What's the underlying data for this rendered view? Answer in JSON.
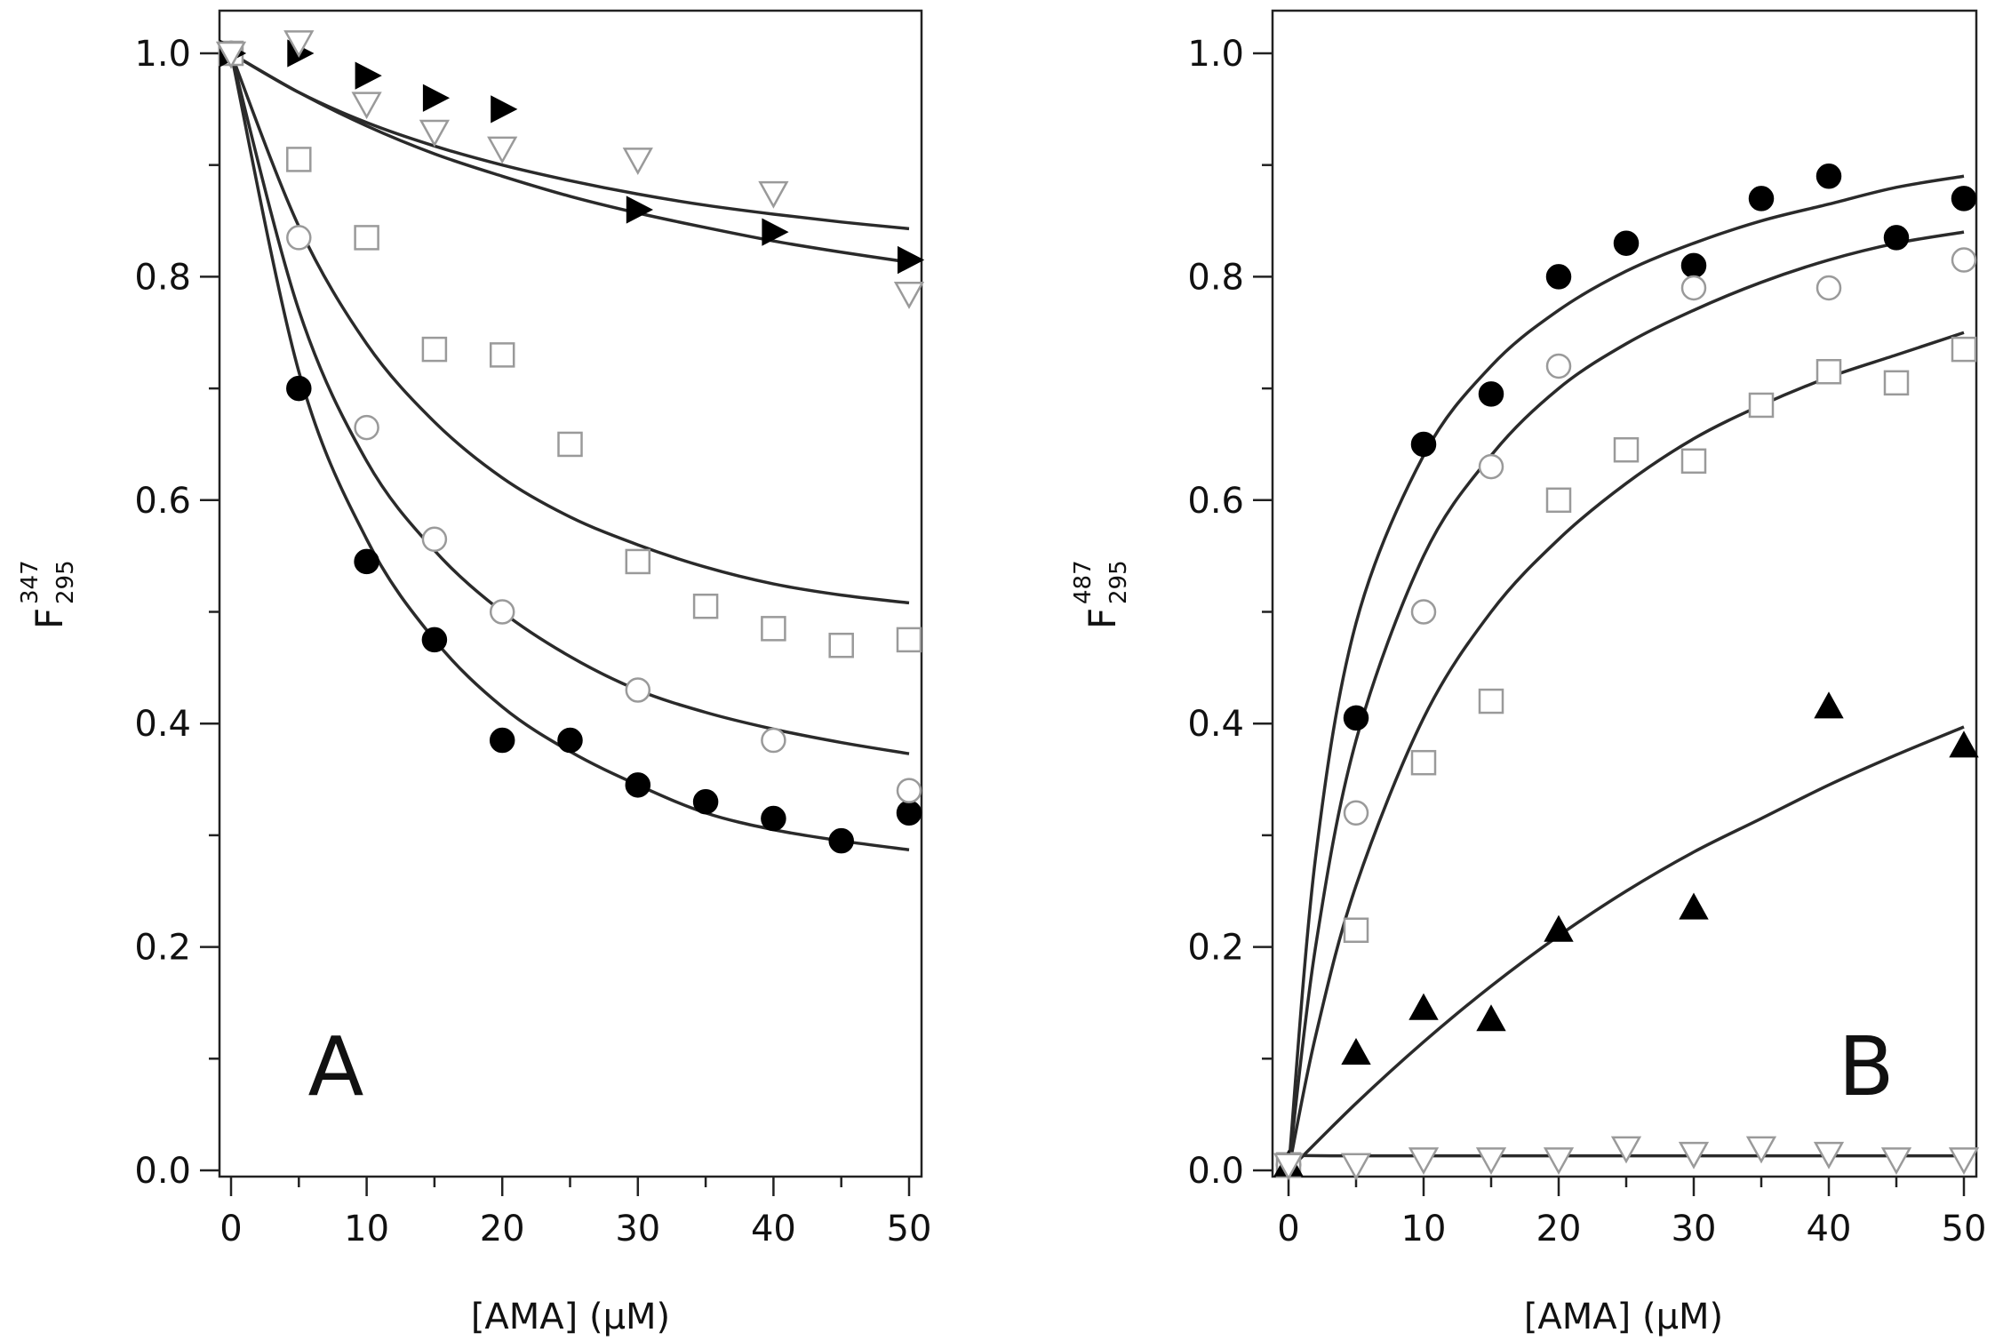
{
  "figure": {
    "panels": [
      "A",
      "B"
    ]
  },
  "chart_data": [
    {
      "type": "scatter",
      "panel_label": "A",
      "title": "",
      "xlabel": "[AMA]  (μM)",
      "ylabel": {
        "main": "F",
        "superscript": "347",
        "subscript": "295"
      },
      "xlim": [
        -1,
        51
      ],
      "ylim": [
        -0.02,
        1.06
      ],
      "xticks": [
        0,
        10,
        20,
        30,
        40,
        50
      ],
      "xtick_labels": [
        "0",
        "10",
        "20",
        "30",
        "40",
        "50"
      ],
      "yticks": [
        0.0,
        0.2,
        0.4,
        0.6,
        0.8,
        1.0
      ],
      "ytick_labels": [
        "0.0",
        "0.2",
        "0.4",
        "0.6",
        "0.8",
        "1.0"
      ],
      "grid": false,
      "series": [
        {
          "name": "filled circle",
          "marker": "circle",
          "filled": true,
          "x": [
            0,
            5,
            10,
            15,
            20,
            25,
            30,
            35,
            40,
            45,
            50
          ],
          "y": [
            1.0,
            0.7,
            0.545,
            0.475,
            0.385,
            0.385,
            0.345,
            0.33,
            0.315,
            0.295,
            0.32
          ],
          "fit": [
            [
              0,
              1.0
            ],
            [
              5,
              0.715
            ],
            [
              10,
              0.565
            ],
            [
              15,
              0.475
            ],
            [
              20,
              0.415
            ],
            [
              25,
              0.375
            ],
            [
              30,
              0.345
            ],
            [
              35,
              0.32
            ],
            [
              40,
              0.305
            ],
            [
              45,
              0.295
            ],
            [
              50,
              0.287
            ]
          ]
        },
        {
          "name": "open circle",
          "marker": "circle",
          "filled": false,
          "x": [
            0,
            5,
            10,
            15,
            20,
            30,
            40,
            50
          ],
          "y": [
            1.0,
            0.835,
            0.665,
            0.565,
            0.5,
            0.43,
            0.385,
            0.34
          ],
          "fit": [
            [
              0,
              1.0
            ],
            [
              5,
              0.77
            ],
            [
              10,
              0.635
            ],
            [
              15,
              0.555
            ],
            [
              20,
              0.5
            ],
            [
              25,
              0.46
            ],
            [
              30,
              0.43
            ],
            [
              35,
              0.41
            ],
            [
              40,
              0.395
            ],
            [
              45,
              0.383
            ],
            [
              50,
              0.373
            ]
          ]
        },
        {
          "name": "open square",
          "marker": "square",
          "filled": false,
          "x": [
            0,
            5,
            10,
            15,
            20,
            25,
            30,
            35,
            40,
            45,
            50
          ],
          "y": [
            1.0,
            0.905,
            0.835,
            0.735,
            0.73,
            0.65,
            0.545,
            0.505,
            0.485,
            0.47,
            0.475
          ],
          "fit": [
            [
              0,
              1.0
            ],
            [
              5,
              0.845
            ],
            [
              10,
              0.74
            ],
            [
              15,
              0.67
            ],
            [
              20,
              0.62
            ],
            [
              25,
              0.585
            ],
            [
              30,
              0.56
            ],
            [
              35,
              0.54
            ],
            [
              40,
              0.525
            ],
            [
              45,
              0.515
            ],
            [
              50,
              0.508
            ]
          ]
        },
        {
          "name": "filled right triangle",
          "marker": "triangle-right",
          "filled": true,
          "x": [
            0,
            5,
            10,
            15,
            20,
            30,
            40,
            50
          ],
          "y": [
            1.0,
            1.0,
            0.98,
            0.96,
            0.95,
            0.86,
            0.84,
            0.815
          ],
          "fit": [
            [
              0,
              1.0
            ],
            [
              5,
              0.965
            ],
            [
              10,
              0.935
            ],
            [
              15,
              0.91
            ],
            [
              20,
              0.89
            ],
            [
              25,
              0.872
            ],
            [
              30,
              0.857
            ],
            [
              35,
              0.844
            ],
            [
              40,
              0.832
            ],
            [
              45,
              0.822
            ],
            [
              50,
              0.813
            ]
          ]
        },
        {
          "name": "open down triangle",
          "marker": "triangle-down",
          "filled": false,
          "x": [
            0,
            5,
            10,
            15,
            20,
            30,
            40,
            50
          ],
          "y": [
            1.0,
            1.01,
            0.955,
            0.93,
            0.915,
            0.905,
            0.875,
            0.785
          ],
          "fit": [
            [
              0,
              1.0
            ],
            [
              5,
              0.965
            ],
            [
              10,
              0.938
            ],
            [
              15,
              0.917
            ],
            [
              20,
              0.9
            ],
            [
              25,
              0.886
            ],
            [
              30,
              0.874
            ],
            [
              35,
              0.864
            ],
            [
              40,
              0.856
            ],
            [
              45,
              0.849
            ],
            [
              50,
              0.843
            ]
          ]
        }
      ]
    },
    {
      "type": "scatter",
      "panel_label": "B",
      "title": "",
      "xlabel": "[AMA]  (μM)",
      "ylabel": {
        "main": "F",
        "superscript": "487",
        "subscript": "295"
      },
      "xlim": [
        -1,
        51
      ],
      "ylim": [
        -0.02,
        1.06
      ],
      "xticks": [
        0,
        10,
        20,
        30,
        40,
        50
      ],
      "xtick_labels": [
        "0",
        "10",
        "20",
        "30",
        "40",
        "50"
      ],
      "yticks": [
        0.0,
        0.2,
        0.4,
        0.6,
        0.8,
        1.0
      ],
      "ytick_labels": [
        "0.0",
        "0.2",
        "0.4",
        "0.6",
        "0.8",
        "1.0"
      ],
      "grid": false,
      "series": [
        {
          "name": "filled circle",
          "marker": "circle",
          "filled": true,
          "x": [
            0,
            5,
            10,
            15,
            20,
            25,
            30,
            35,
            40,
            45,
            50
          ],
          "y": [
            0.005,
            0.405,
            0.65,
            0.695,
            0.8,
            0.83,
            0.81,
            0.87,
            0.89,
            0.835,
            0.87
          ],
          "fit": [
            [
              0,
              0.0
            ],
            [
              2,
              0.28
            ],
            [
              5,
              0.49
            ],
            [
              10,
              0.64
            ],
            [
              15,
              0.72
            ],
            [
              20,
              0.77
            ],
            [
              25,
              0.805
            ],
            [
              30,
              0.83
            ],
            [
              35,
              0.85
            ],
            [
              40,
              0.865
            ],
            [
              45,
              0.88
            ],
            [
              50,
              0.89
            ]
          ]
        },
        {
          "name": "open circle",
          "marker": "circle",
          "filled": false,
          "x": [
            0,
            5,
            10,
            15,
            20,
            30,
            40,
            50
          ],
          "y": [
            0.005,
            0.32,
            0.5,
            0.63,
            0.72,
            0.79,
            0.79,
            0.815
          ],
          "fit": [
            [
              0,
              0.0
            ],
            [
              2,
              0.2
            ],
            [
              5,
              0.385
            ],
            [
              10,
              0.55
            ],
            [
              15,
              0.64
            ],
            [
              20,
              0.7
            ],
            [
              25,
              0.74
            ],
            [
              30,
              0.77
            ],
            [
              35,
              0.795
            ],
            [
              40,
              0.815
            ],
            [
              45,
              0.83
            ],
            [
              50,
              0.84
            ]
          ]
        },
        {
          "name": "open square",
          "marker": "square",
          "filled": false,
          "x": [
            0,
            5,
            10,
            15,
            20,
            25,
            30,
            35,
            40,
            45,
            50
          ],
          "y": [
            0.005,
            0.215,
            0.365,
            0.42,
            0.6,
            0.645,
            0.635,
            0.685,
            0.715,
            0.705,
            0.735
          ],
          "fit": [
            [
              0,
              0.0
            ],
            [
              2,
              0.12
            ],
            [
              5,
              0.255
            ],
            [
              10,
              0.405
            ],
            [
              15,
              0.5
            ],
            [
              20,
              0.565
            ],
            [
              25,
              0.615
            ],
            [
              30,
              0.655
            ],
            [
              35,
              0.685
            ],
            [
              40,
              0.71
            ],
            [
              45,
              0.73
            ],
            [
              50,
              0.75
            ]
          ]
        },
        {
          "name": "filled up triangle",
          "marker": "triangle-up",
          "filled": true,
          "x": [
            0,
            5,
            10,
            15,
            20,
            30,
            40,
            50
          ],
          "y": [
            0.005,
            0.105,
            0.145,
            0.135,
            0.215,
            0.235,
            0.415,
            0.38
          ],
          "fit": [
            [
              0,
              0.0
            ],
            [
              5,
              0.06
            ],
            [
              10,
              0.115
            ],
            [
              15,
              0.165
            ],
            [
              20,
              0.21
            ],
            [
              25,
              0.25
            ],
            [
              30,
              0.285
            ],
            [
              35,
              0.315
            ],
            [
              40,
              0.345
            ],
            [
              45,
              0.372
            ],
            [
              50,
              0.397
            ]
          ]
        },
        {
          "name": "open down triangle",
          "marker": "triangle-down",
          "filled": false,
          "x": [
            0,
            5,
            10,
            15,
            20,
            25,
            30,
            35,
            40,
            45,
            50
          ],
          "y": [
            0.005,
            0.005,
            0.01,
            0.01,
            0.01,
            0.02,
            0.015,
            0.02,
            0.015,
            0.01,
            0.01
          ],
          "fit": [
            [
              0,
              0.0
            ],
            [
              1,
              0.013
            ],
            [
              5,
              0.013
            ],
            [
              50,
              0.013
            ]
          ]
        }
      ]
    }
  ]
}
